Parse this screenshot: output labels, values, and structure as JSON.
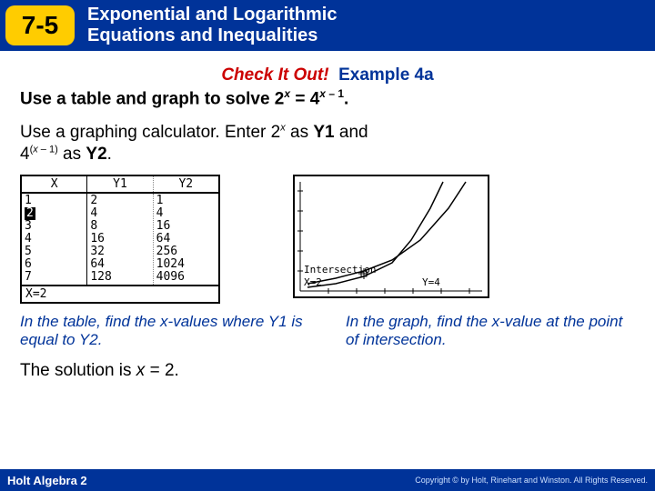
{
  "header": {
    "lesson": "7-5",
    "title_l1": "Exponential and Logarithmic",
    "title_l2": "Equations and Inequalities"
  },
  "check": {
    "cio": "Check It Out!",
    "ex": "Example 4a"
  },
  "problem": {
    "pre": "Use a table and graph to solve 2",
    "mid": " = 4",
    "post": "."
  },
  "instr": {
    "l1a": "Use a graphing calculator. Enter 2",
    "l1b": " as ",
    "y1": "Y1",
    "l1c": " and",
    "l2a": "4",
    "l2b": " as ",
    "y2": "Y2",
    "l2c": "."
  },
  "table": {
    "heads": [
      "X",
      "Y1",
      "Y2"
    ],
    "x": [
      "1",
      "2",
      "3",
      "4",
      "5",
      "6",
      "7"
    ],
    "y1": [
      "2",
      "4",
      "8",
      "16",
      "32",
      "64",
      "128"
    ],
    "y2": [
      "1",
      "4",
      "16",
      "64",
      "256",
      "1024",
      "4096"
    ],
    "foot": "X=2",
    "highlight_row": 1
  },
  "graph": {
    "label": "Intersection",
    "xl": "X=2",
    "yl": "Y=4",
    "curve1": [
      [
        14,
        118
      ],
      [
        45,
        112
      ],
      [
        76,
        104
      ],
      [
        107,
        92
      ],
      [
        138,
        70
      ],
      [
        169,
        35
      ],
      [
        188,
        6
      ]
    ],
    "curve2": [
      [
        14,
        122
      ],
      [
        45,
        118
      ],
      [
        76,
        110
      ],
      [
        107,
        95
      ],
      [
        128,
        70
      ],
      [
        149,
        35
      ],
      [
        163,
        6
      ]
    ],
    "marker": [
      76,
      107
    ]
  },
  "caps": {
    "left": "In the table, find the x-values where Y1 is equal to Y2.",
    "right": "In the graph, find the x-value at the point of intersection."
  },
  "solution": {
    "pre": "The solution is ",
    "var": "x",
    "post": " = 2."
  },
  "footer": {
    "book": "Holt Algebra 2",
    "copy": "Copyright © by Holt, Rinehart and Winston. All Rights Reserved."
  },
  "colors": {
    "header": "#003399",
    "badge": "#ffcc00",
    "cio": "#cc0000",
    "cap": "#003399"
  }
}
